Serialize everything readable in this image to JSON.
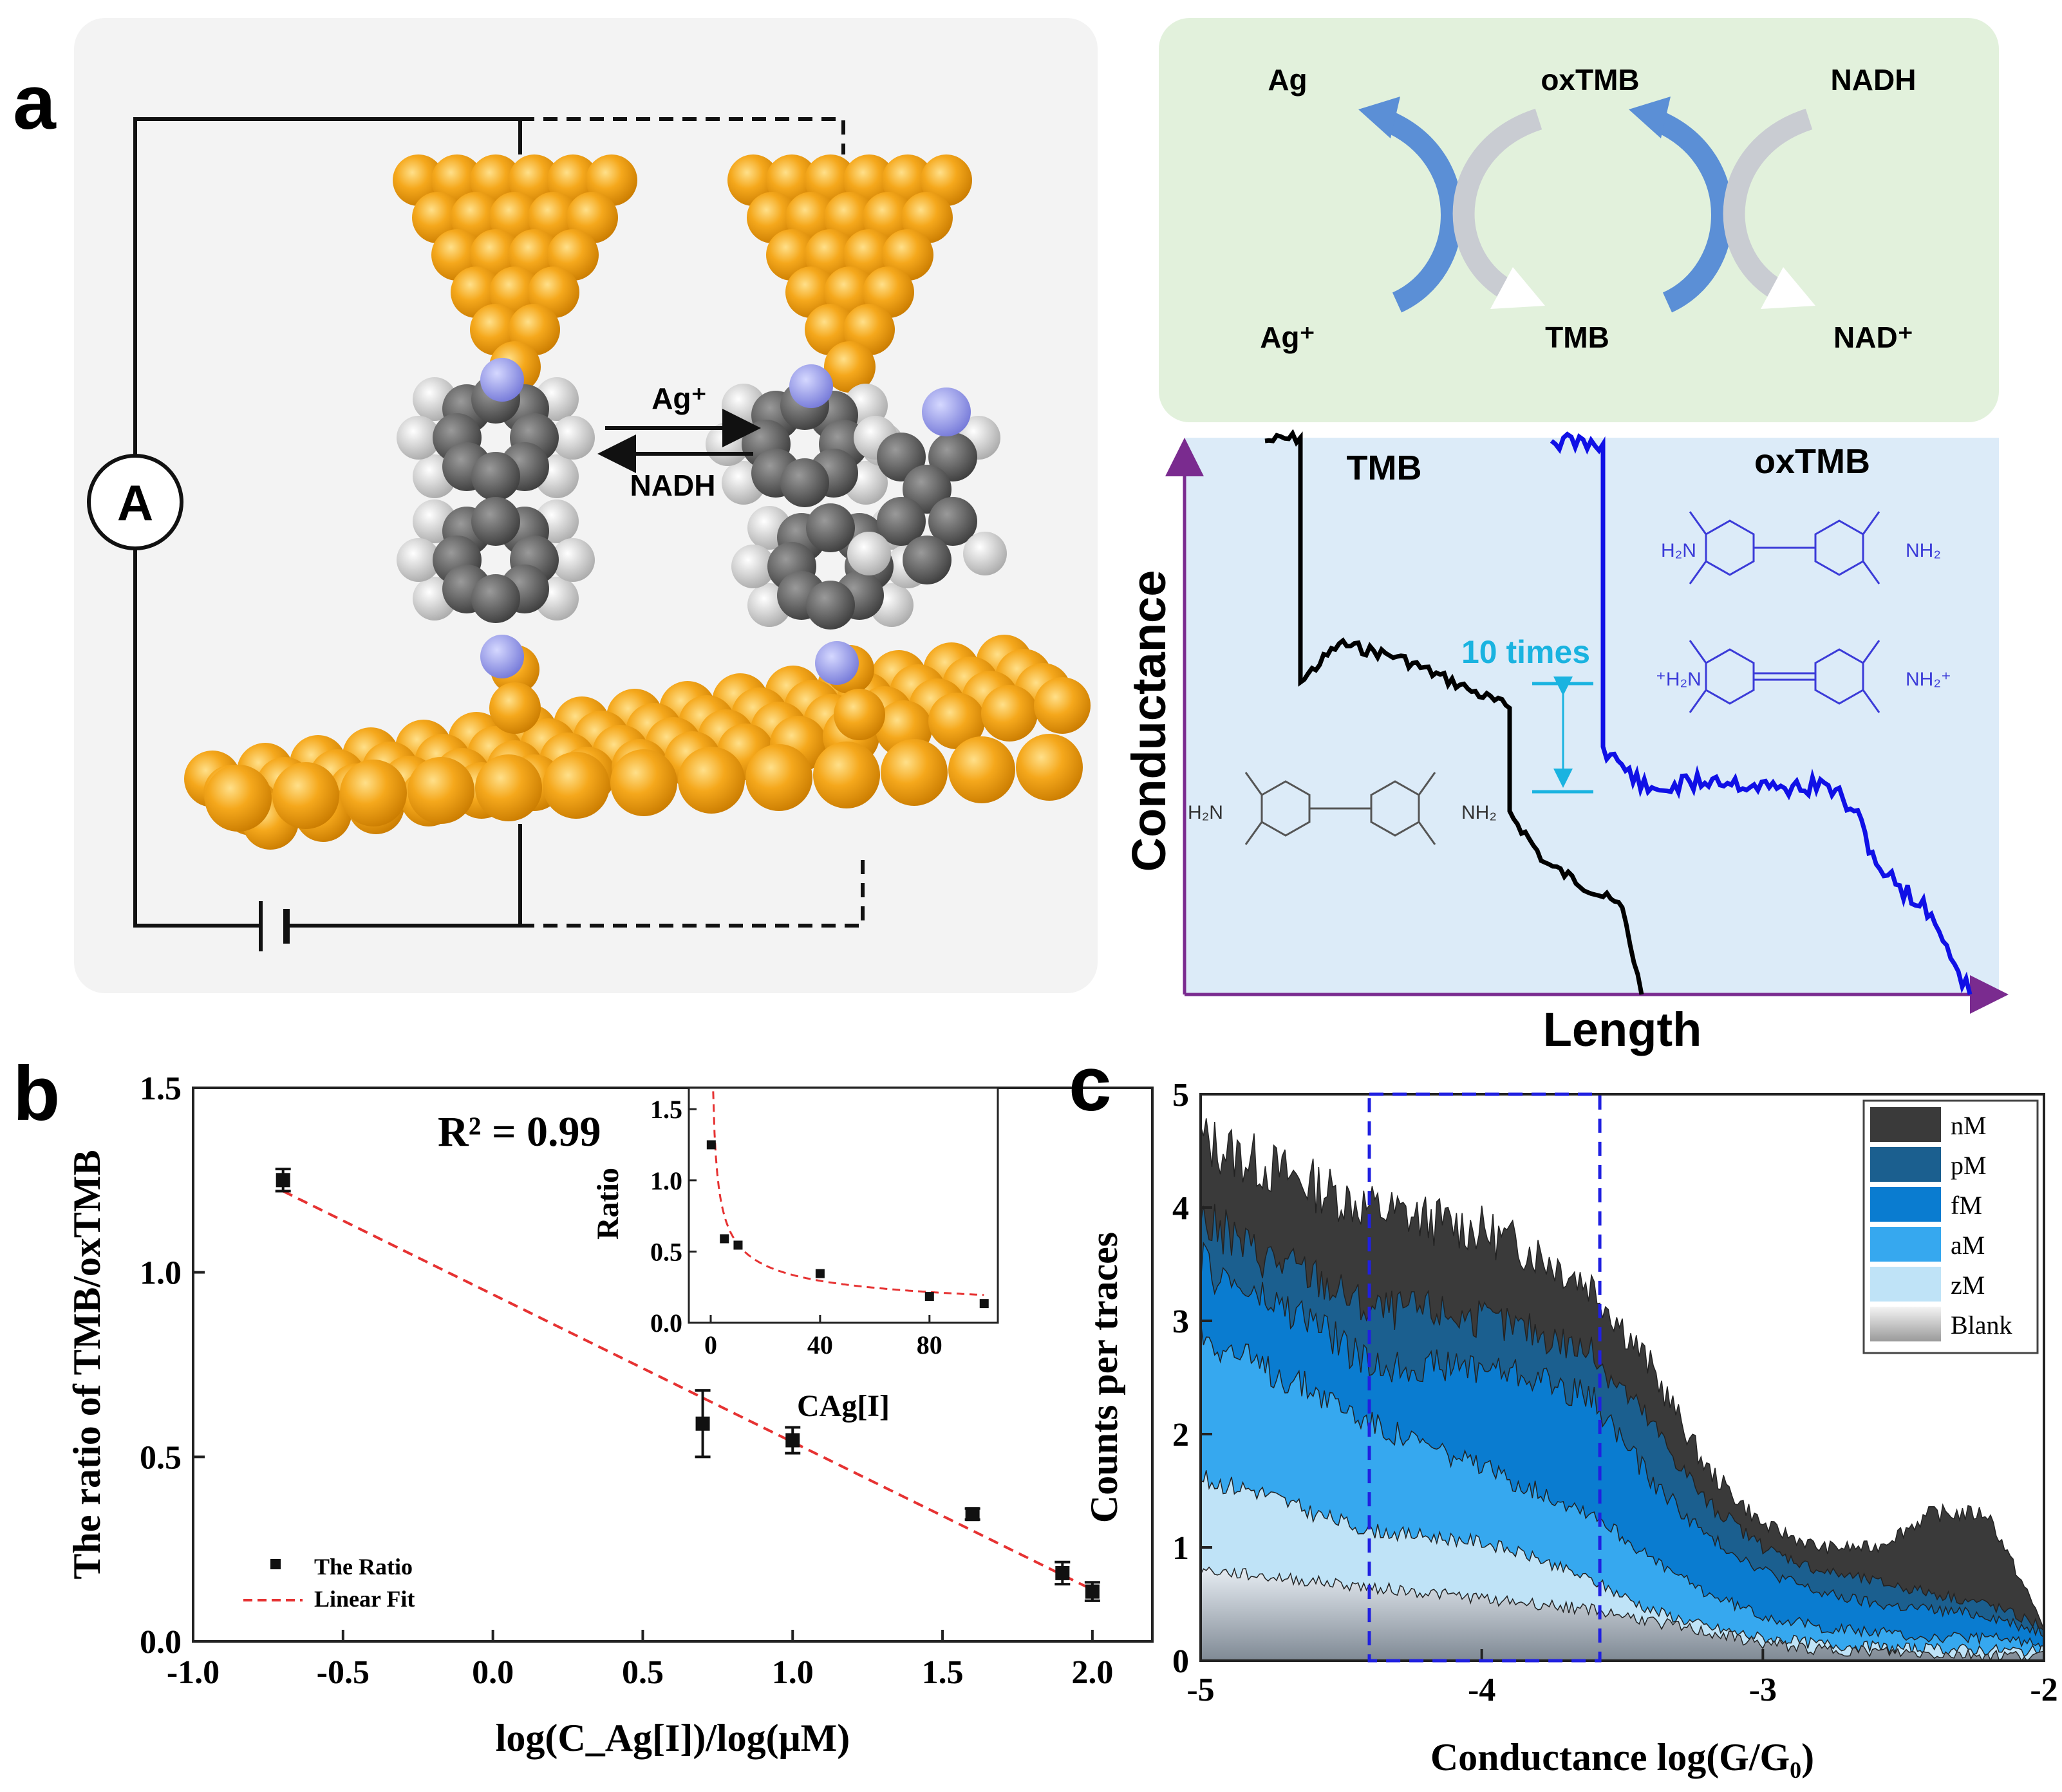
{
  "panel_labels": {
    "a": "a",
    "b": "b",
    "c": "c"
  },
  "circuit": {
    "ammeter": "A",
    "forward": "Ag⁺",
    "backward": "NADH"
  },
  "redox": {
    "top": [
      "Ag",
      "oxTMB",
      "NADH"
    ],
    "bottom": [
      "Ag⁺",
      "TMB",
      "NAD⁺"
    ],
    "colors": {
      "bg": "#e2f1dc",
      "arrow_blue": "#5b8fd6",
      "arrow_grey": "#c9ccd2"
    }
  },
  "conductance_trace": {
    "tmb_label": "TMB",
    "oxtmb_label": "oxTMB",
    "ratio_label": "10 times",
    "ylabel": "Conductance",
    "xlabel": "Length",
    "nh2": "NH₂",
    "h2n": "H₂N",
    "nh2_plus": "NH₂⁺",
    "h2n_plus": "⁺H₂N",
    "colors": {
      "bg": "#dcebf8",
      "tmb": "#000000",
      "oxtmb": "#1010e6",
      "arrow": "#1ab3e0"
    }
  },
  "chart_data": [
    {
      "id": "b",
      "type": "scatter",
      "title": "R² = 0.99",
      "xlabel": "log(C_Ag[I])/log(μM)",
      "ylabel": "The ratio of TMB/oxTMB",
      "xlim": [
        -1.0,
        2.2
      ],
      "ylim": [
        0.0,
        1.5
      ],
      "xticks": [
        "-1.0",
        "-0.5",
        "0.0",
        "0.5",
        "1.0",
        "1.5",
        "2.0"
      ],
      "yticks": [
        "0.0",
        "0.5",
        "1.0",
        "1.5"
      ],
      "series": [
        {
          "name": "The Ratio",
          "x": [
            -0.7,
            0.7,
            1.0,
            1.6,
            1.9,
            2.0
          ],
          "y": [
            1.25,
            0.59,
            0.545,
            0.345,
            0.185,
            0.135
          ],
          "err": [
            0.03,
            0.09,
            0.035,
            0.015,
            0.03,
            0.025
          ]
        },
        {
          "name": "Linear Fit",
          "x": [
            -0.7,
            2.0
          ],
          "y": [
            1.22,
            0.14
          ]
        }
      ],
      "legend": [
        "The Ratio",
        "Linear Fit"
      ],
      "inset": {
        "xlabel": "CAg[I]",
        "ylabel": "Ratio",
        "xlim": [
          -8,
          105
        ],
        "ylim": [
          0.0,
          1.65
        ],
        "xticks": [
          "0",
          "40",
          "80"
        ],
        "yticks": [
          "0.0",
          "0.5",
          "1.0",
          "1.5"
        ],
        "x": [
          0.2,
          5,
          10,
          40,
          80,
          100
        ],
        "y": [
          1.25,
          0.59,
          0.545,
          0.345,
          0.185,
          0.135
        ]
      }
    },
    {
      "id": "c",
      "type": "area",
      "xlabel": "Conductance log(G/G₀)",
      "ylabel": "Counts per traces",
      "xlim": [
        -5,
        -2
      ],
      "ylim": [
        0,
        5
      ],
      "xticks": [
        "-5",
        "-4",
        "-3",
        "-2"
      ],
      "yticks": [
        "0",
        "1",
        "2",
        "3",
        "4",
        "5"
      ],
      "highlight_range": [
        -4.4,
        -3.58
      ],
      "series": [
        {
          "name": "nM",
          "color": "#3a3a3a",
          "x": [
            -5,
            -4.8,
            -4.6,
            -4.4,
            -4.2,
            -4.0,
            -3.8,
            -3.6,
            -3.4,
            -3.2,
            -3.0,
            -2.8,
            -2.6,
            -2.4,
            -2.2,
            -2.0
          ],
          "y": [
            4.6,
            4.4,
            4.2,
            4.0,
            3.9,
            3.8,
            3.6,
            3.3,
            2.6,
            1.7,
            1.2,
            1.0,
            1.0,
            1.3,
            1.3,
            0.3
          ]
        },
        {
          "name": "pM",
          "color": "#1b5f8f",
          "x": [
            -5,
            -4.8,
            -4.6,
            -4.4,
            -4.2,
            -4.0,
            -3.8,
            -3.6,
            -3.4,
            -3.2,
            -3.0,
            -2.8,
            -2.6,
            -2.4,
            -2.2,
            -2.0
          ],
          "y": [
            3.9,
            3.6,
            3.4,
            3.1,
            3.1,
            3.0,
            2.9,
            2.7,
            2.1,
            1.4,
            1.0,
            0.8,
            0.7,
            0.6,
            0.5,
            0.3
          ]
        },
        {
          "name": "fM",
          "color": "#0a7cd0",
          "x": [
            -5,
            -4.8,
            -4.6,
            -4.4,
            -4.2,
            -4.0,
            -3.8,
            -3.6,
            -3.4,
            -3.2,
            -3.0,
            -2.8,
            -2.6,
            -2.4,
            -2.2,
            -2.0
          ],
          "y": [
            3.5,
            3.2,
            3.0,
            2.6,
            2.6,
            2.6,
            2.5,
            2.3,
            1.6,
            1.1,
            0.8,
            0.6,
            0.5,
            0.45,
            0.4,
            0.25
          ]
        },
        {
          "name": "aM",
          "color": "#36a8ef",
          "x": [
            -5,
            -4.8,
            -4.6,
            -4.4,
            -4.2,
            -4.0,
            -3.8,
            -3.6,
            -3.4,
            -3.2,
            -3.0,
            -2.8,
            -2.6,
            -2.4,
            -2.2,
            -2.0
          ],
          "y": [
            2.9,
            2.6,
            2.4,
            2.1,
            1.9,
            1.7,
            1.5,
            1.3,
            0.9,
            0.6,
            0.4,
            0.3,
            0.25,
            0.2,
            0.2,
            0.15
          ]
        },
        {
          "name": "zM",
          "color": "#bfe3f7",
          "x": [
            -5,
            -4.8,
            -4.6,
            -4.4,
            -4.2,
            -4.0,
            -3.8,
            -3.6,
            -3.4,
            -3.2,
            -3.0,
            -2.8,
            -2.6,
            -2.4,
            -2.2,
            -2.0
          ],
          "y": [
            1.6,
            1.5,
            1.3,
            1.15,
            1.1,
            1.05,
            0.9,
            0.7,
            0.45,
            0.3,
            0.2,
            0.15,
            0.12,
            0.1,
            0.1,
            0.08
          ]
        },
        {
          "name": "Blank",
          "color": "#8e98a2",
          "x": [
            -5,
            -4.8,
            -4.6,
            -4.4,
            -4.2,
            -4.0,
            -3.8,
            -3.6,
            -3.4,
            -3.2,
            -3.0,
            -2.8,
            -2.6,
            -2.4,
            -2.2,
            -2.0
          ],
          "y": [
            0.8,
            0.75,
            0.7,
            0.65,
            0.6,
            0.55,
            0.5,
            0.45,
            0.35,
            0.25,
            0.15,
            0.1,
            0.08,
            0.06,
            0.05,
            0.04
          ]
        }
      ],
      "legend": [
        "nM",
        "pM",
        "fM",
        "aM",
        "zM",
        "Blank"
      ]
    }
  ]
}
